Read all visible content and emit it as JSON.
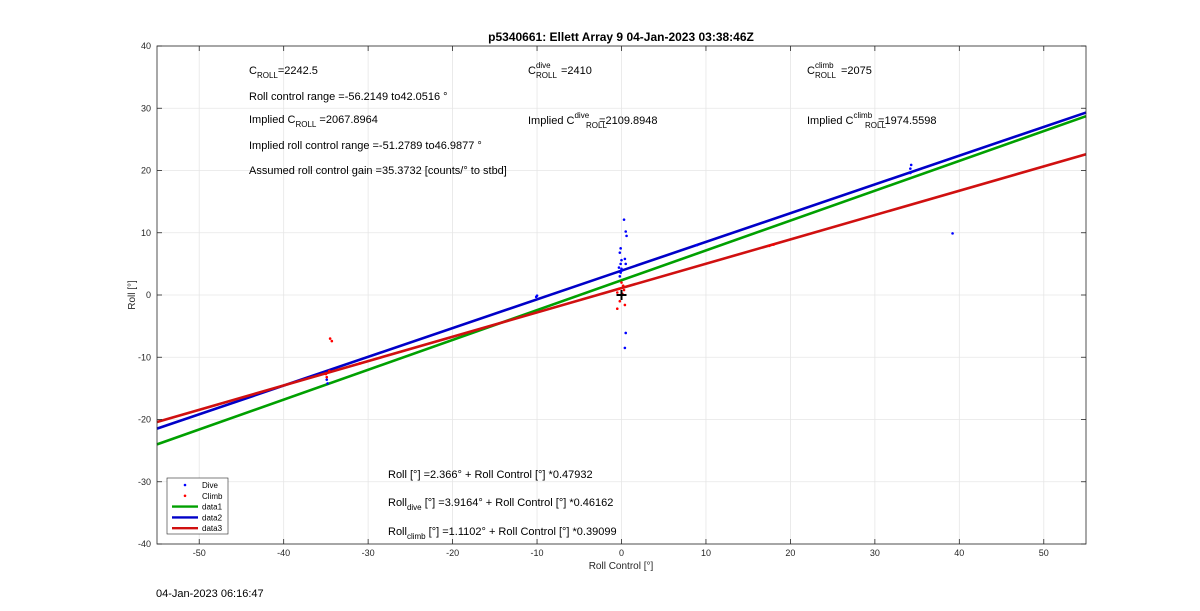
{
  "chart_data": {
    "type": "scatter",
    "title": "p5340661: Ellett Array 9 04-Jan-2023 03:38:46Z",
    "xlabel": "Roll Control [°]",
    "ylabel": "Roll [°]",
    "xlim": [
      -55,
      55
    ],
    "ylim": [
      -40,
      40
    ],
    "x_ticks": [
      -50,
      -40,
      -30,
      -20,
      -10,
      0,
      10,
      20,
      30,
      40,
      50
    ],
    "y_ticks": [
      -40,
      -30,
      -20,
      -10,
      0,
      10,
      20,
      30,
      40
    ],
    "grid": true,
    "legend_position": "bottom-left",
    "series": [
      {
        "name": "Dive",
        "kind": "points",
        "color": "#0000ff",
        "points": [
          [
            -34.8,
            -14.2
          ],
          [
            -34.9,
            -13.6
          ],
          [
            -10.1,
            -0.3
          ],
          [
            -10.0,
            -0.1
          ],
          [
            -0.2,
            3.0
          ],
          [
            -0.1,
            3.6
          ],
          [
            0.0,
            4.2
          ],
          [
            -0.1,
            5.0
          ],
          [
            0.0,
            5.6
          ],
          [
            -0.2,
            6.8
          ],
          [
            -0.1,
            7.5
          ],
          [
            0.3,
            12.1
          ],
          [
            0.5,
            10.2
          ],
          [
            0.6,
            9.5
          ],
          [
            0.4,
            5.8
          ],
          [
            0.5,
            5.0
          ],
          [
            0.5,
            -6.1
          ],
          [
            0.4,
            -8.5
          ],
          [
            0.0,
            3.9
          ],
          [
            -0.3,
            4.4
          ],
          [
            8.9,
            8.0
          ],
          [
            34.2,
            19.6
          ],
          [
            34.2,
            20.3
          ],
          [
            34.3,
            20.9
          ],
          [
            39.2,
            9.9
          ]
        ]
      },
      {
        "name": "Climb",
        "kind": "points",
        "color": "#ff0000",
        "points": [
          [
            -34.5,
            -7.0
          ],
          [
            -34.3,
            -7.4
          ],
          [
            -35.0,
            -12.7
          ],
          [
            -34.9,
            -13.2
          ],
          [
            -34.6,
            -12.2
          ],
          [
            -31.0,
            -11.0
          ],
          [
            -0.5,
            0.4
          ],
          [
            -0.3,
            1.0
          ],
          [
            0.1,
            0.2
          ],
          [
            0.2,
            1.5
          ],
          [
            0.3,
            0.8
          ],
          [
            -0.2,
            -1.0
          ],
          [
            -0.5,
            -2.2
          ],
          [
            0.4,
            -1.6
          ],
          [
            0.0,
            2.0
          ],
          [
            17.5,
            7.9
          ],
          [
            18.0,
            8.1
          ]
        ]
      },
      {
        "name": "data1",
        "kind": "line",
        "color": "#00a000",
        "intercept": 2.366,
        "slope": 0.47932
      },
      {
        "name": "data2",
        "kind": "line",
        "color": "#0000c8",
        "intercept": 3.9164,
        "slope": 0.46162
      },
      {
        "name": "data3",
        "kind": "line",
        "color": "#d01010",
        "intercept": 1.1102,
        "slope": 0.39099
      }
    ],
    "marker": {
      "x": 0,
      "y": 0,
      "symbol": "+",
      "color": "#000000"
    },
    "annotations": {
      "c_roll": {
        "base": "C",
        "sub": "ROLL",
        "value": "=2242.5"
      },
      "c_roll_dive": {
        "base": "C",
        "sup": "dive",
        "sub": "ROLL",
        "value": "=2410"
      },
      "c_roll_climb": {
        "base": "C",
        "sup": "climb",
        "sub": "ROLL",
        "value": "=2075"
      },
      "roll_range": "Roll control range =-56.2149 to42.0516 °",
      "implied_c_roll": {
        "prefix": "Implied C",
        "sub": "ROLL",
        "value": " =2067.8964"
      },
      "implied_c_roll_dive": {
        "prefix": "Implied C",
        "sup": "dive",
        "sub": "ROLL",
        "value": " =2109.8948"
      },
      "implied_c_roll_climb": {
        "prefix": "Implied C",
        "sup": "climb",
        "sub": "ROLL",
        "value": " =1974.5598"
      },
      "implied_range": "Implied roll control range =-51.2789 to46.9877 °",
      "gain": "Assumed roll control gain =35.3732 [counts/° to stbd]",
      "eq_all": "Roll [°] =2.366° + Roll Control [°] *0.47932",
      "eq_dive": {
        "base": "Roll",
        "sub": "dive",
        "rest": " [°] =3.9164° + Roll Control [°] *0.46162"
      },
      "eq_climb": {
        "base": "Roll",
        "sub": "climb",
        "rest": " [°] =1.1102° + Roll Control [°] *0.39099"
      }
    }
  },
  "footer": {
    "timestamp": "04-Jan-2023 06:16:47"
  }
}
